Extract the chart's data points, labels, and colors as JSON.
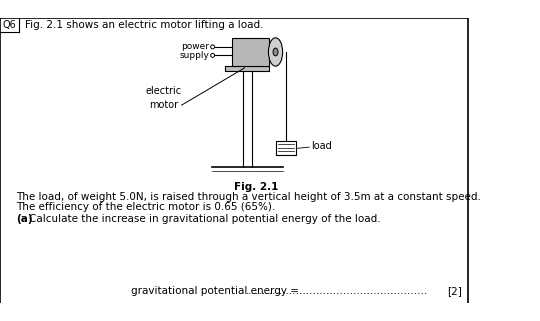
{
  "q_number": "Q6",
  "header_text": "Fig. 2.1 shows an electric motor lifting a load.",
  "fig_label": "Fig. 2.1",
  "body_text_line1": "The load, of weight 5.0N, is raised through a vertical height of 3.5m at a constant speed.",
  "body_text_line2": "The efficiency of the electric motor is 0.65 (65%).",
  "part_a_label": "(a)",
  "part_a_text": "  Calculate the increase in gravitational potential energy of the load.",
  "answer_label": "gravitational potential energy = ",
  "dots": "......................................................",
  "marks": "[2]",
  "bg_color": "#ffffff",
  "border_color": "#000000",
  "text_color": "#000000",
  "label_power": "power",
  "label_supply": "supply",
  "label_electric": "electric\nmotor",
  "label_load": "load"
}
